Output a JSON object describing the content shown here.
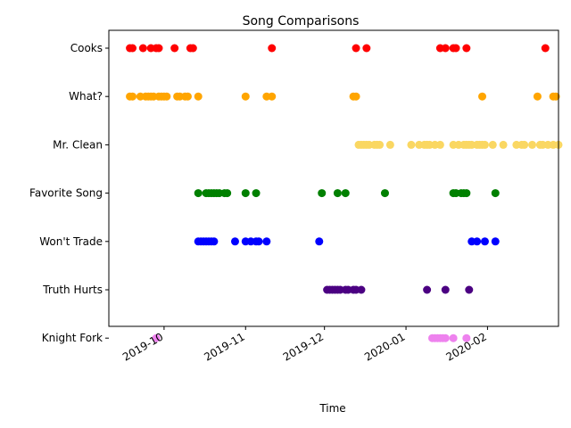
{
  "chart_data": {
    "type": "scatter",
    "title": "Song Comparisons",
    "xlabel": "Time",
    "ylabel": "",
    "x_axis": "date",
    "xlim": [
      "2019-09-10",
      "2020-02-28"
    ],
    "grid": false,
    "legend": "none",
    "x_ticks": [
      {
        "date": "2019-10-01",
        "label": "2019-10"
      },
      {
        "date": "2019-11-01",
        "label": "2019-11"
      },
      {
        "date": "2019-12-01",
        "label": "2019-12"
      },
      {
        "date": "2020-01-01",
        "label": "2020-01"
      },
      {
        "date": "2020-02-01",
        "label": "2020-02"
      }
    ],
    "categories": [
      "Cooks",
      "What?",
      "Mr. Clean",
      "Favorite Song",
      "Won't Trade",
      "Truth Hurts",
      "Knight Fork"
    ],
    "series": [
      {
        "category": "Cooks",
        "color": "#ff0000",
        "x": [
          "2019-09-18",
          "2019-09-19",
          "2019-09-23",
          "2019-09-26",
          "2019-09-28",
          "2019-09-29",
          "2019-10-05",
          "2019-10-11",
          "2019-10-12",
          "2019-11-11",
          "2019-12-13",
          "2019-12-17",
          "2020-01-14",
          "2020-01-16",
          "2020-01-19",
          "2020-01-20",
          "2020-01-24",
          "2020-02-23"
        ]
      },
      {
        "category": "What?",
        "color": "#ffa500",
        "x": [
          "2019-09-18",
          "2019-09-19",
          "2019-09-22",
          "2019-09-24",
          "2019-09-25",
          "2019-09-26",
          "2019-09-27",
          "2019-09-29",
          "2019-09-30",
          "2019-10-01",
          "2019-10-02",
          "2019-10-06",
          "2019-10-07",
          "2019-10-09",
          "2019-10-10",
          "2019-10-14",
          "2019-11-01",
          "2019-11-09",
          "2019-11-11",
          "2019-12-12",
          "2019-12-13",
          "2020-01-30",
          "2020-02-20",
          "2020-02-26",
          "2020-02-27"
        ]
      },
      {
        "category": "Mr. Clean",
        "color": "#fad762",
        "x": [
          "2019-12-14",
          "2019-12-15",
          "2019-12-16",
          "2019-12-17",
          "2019-12-18",
          "2019-12-20",
          "2019-12-21",
          "2019-12-22",
          "2019-12-26",
          "2020-01-03",
          "2020-01-06",
          "2020-01-08",
          "2020-01-09",
          "2020-01-10",
          "2020-01-12",
          "2020-01-14",
          "2020-01-19",
          "2020-01-21",
          "2020-01-23",
          "2020-01-24",
          "2020-01-25",
          "2020-01-26",
          "2020-01-28",
          "2020-01-29",
          "2020-01-30",
          "2020-01-31",
          "2020-02-03",
          "2020-02-07",
          "2020-02-12",
          "2020-02-14",
          "2020-02-15",
          "2020-02-18",
          "2020-02-21",
          "2020-02-22",
          "2020-02-24",
          "2020-02-26",
          "2020-02-28"
        ]
      },
      {
        "category": "Favorite Song",
        "color": "#008000",
        "x": [
          "2019-10-14",
          "2019-10-17",
          "2019-10-18",
          "2019-10-19",
          "2019-10-20",
          "2019-10-21",
          "2019-10-22",
          "2019-10-24",
          "2019-10-25",
          "2019-11-01",
          "2019-11-05",
          "2019-11-30",
          "2019-12-06",
          "2019-12-09",
          "2019-12-24",
          "2020-01-19",
          "2020-01-20",
          "2020-01-22",
          "2020-01-23",
          "2020-01-24",
          "2020-02-04"
        ]
      },
      {
        "category": "Won't Trade",
        "color": "#0000ff",
        "x": [
          "2019-10-14",
          "2019-10-15",
          "2019-10-16",
          "2019-10-17",
          "2019-10-18",
          "2019-10-19",
          "2019-10-20",
          "2019-10-28",
          "2019-11-01",
          "2019-11-03",
          "2019-11-05",
          "2019-11-06",
          "2019-11-09",
          "2019-11-29",
          "2020-01-26",
          "2020-01-28",
          "2020-01-31",
          "2020-02-04"
        ]
      },
      {
        "category": "Truth Hurts",
        "color": "#4b0082",
        "x": [
          "2019-12-02",
          "2019-12-03",
          "2019-12-04",
          "2019-12-05",
          "2019-12-06",
          "2019-12-07",
          "2019-12-09",
          "2019-12-10",
          "2019-12-12",
          "2019-12-13",
          "2019-12-15",
          "2020-01-09",
          "2020-01-16",
          "2020-01-25"
        ]
      },
      {
        "category": "Knight Fork",
        "color": "#ee82ee",
        "x": [
          "2019-09-28",
          "2020-01-11",
          "2020-01-12",
          "2020-01-13",
          "2020-01-14",
          "2020-01-15",
          "2020-01-16",
          "2020-01-19",
          "2020-01-24"
        ]
      }
    ]
  }
}
